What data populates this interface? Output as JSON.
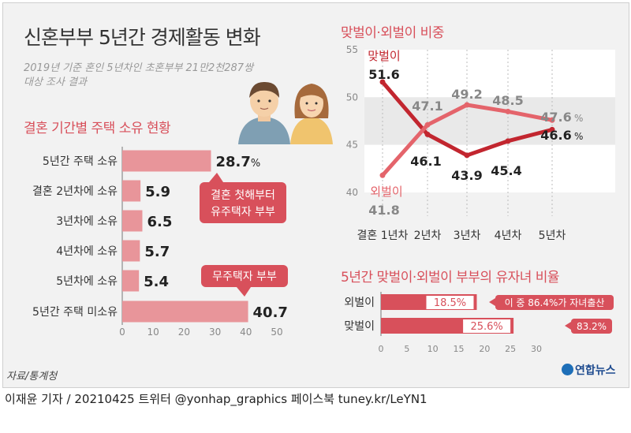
{
  "header": {
    "title": "신혼부부 5년간 경제활동 변화",
    "subtitle_line1": "2019년 기준 혼인 5년차인 초혼부부 21만2천287쌍",
    "subtitle_line2": "대상 조사 결과"
  },
  "colors": {
    "accent": "#d8505b",
    "bar": "#e8959a",
    "dark_line": "#c2262f",
    "light_line": "#e4646b",
    "callout": "#d8505b"
  },
  "chart_data": [
    {
      "type": "bar",
      "orientation": "horizontal",
      "title": "결혼 기간별 주택 소유 현황",
      "categories": [
        "5년간 주택 소유",
        "결혼 2년차에 소유",
        "3년차에 소유",
        "4년차에 소유",
        "5년차에 소유",
        "5년간 주택 미소유"
      ],
      "values": [
        28.7,
        5.9,
        6.5,
        5.7,
        5.4,
        40.7
      ],
      "value_labels": [
        "28.7",
        "5.9",
        "6.5",
        "5.7",
        "5.4",
        "40.7"
      ],
      "unit_suffix": "%",
      "xlim": [
        0,
        50
      ],
      "xticks": [
        "0",
        "10",
        "20",
        "30",
        "40",
        "50"
      ],
      "annotations": [
        {
          "text_line1": "결혼 첫해부터",
          "text_line2": "유주택자 부부"
        },
        {
          "text_line1": "무주택자 부부"
        }
      ]
    },
    {
      "type": "line",
      "title": "맞벌이·외벌이 비중",
      "categories": [
        "결혼 1년차",
        "2년차",
        "3년차",
        "4년차",
        "5년차"
      ],
      "ylim": [
        40,
        55
      ],
      "yticks": [
        "40",
        "45",
        "50",
        "55"
      ],
      "series": [
        {
          "name": "맞벌이",
          "values": [
            51.6,
            46.1,
            43.9,
            45.4,
            46.6
          ],
          "labels": [
            "51.6",
            "46.1",
            "43.9",
            "45.4",
            "46.6"
          ]
        },
        {
          "name": "외벌이",
          "values": [
            41.8,
            47.1,
            49.2,
            48.5,
            47.6
          ],
          "labels": [
            "41.8",
            "47.1",
            "49.2",
            "48.5",
            "47.6"
          ]
        }
      ],
      "unit_suffix": "%"
    },
    {
      "type": "bar",
      "orientation": "horizontal",
      "title": "5년간 맞벌이·외벌이 부부의 유자녀 비율",
      "categories": [
        "외벌이",
        "맞벌이"
      ],
      "values": [
        18.5,
        25.6
      ],
      "value_labels": [
        "18.5%",
        "25.6%"
      ],
      "xlim": [
        0,
        30
      ],
      "xticks": [
        "0",
        "5",
        "10",
        "15",
        "20",
        "25",
        "30"
      ],
      "annotations": [
        {
          "text": "이 중 86.4%가 자녀출산"
        },
        {
          "text": "83.2%"
        }
      ]
    }
  ],
  "footer": {
    "source": "자료/통계청",
    "logo": "연합뉴스",
    "credit": "이재윤 기자 / 20210425   트위터 @yonhap_graphics   페이스북 tuney.kr/LeYN1"
  }
}
